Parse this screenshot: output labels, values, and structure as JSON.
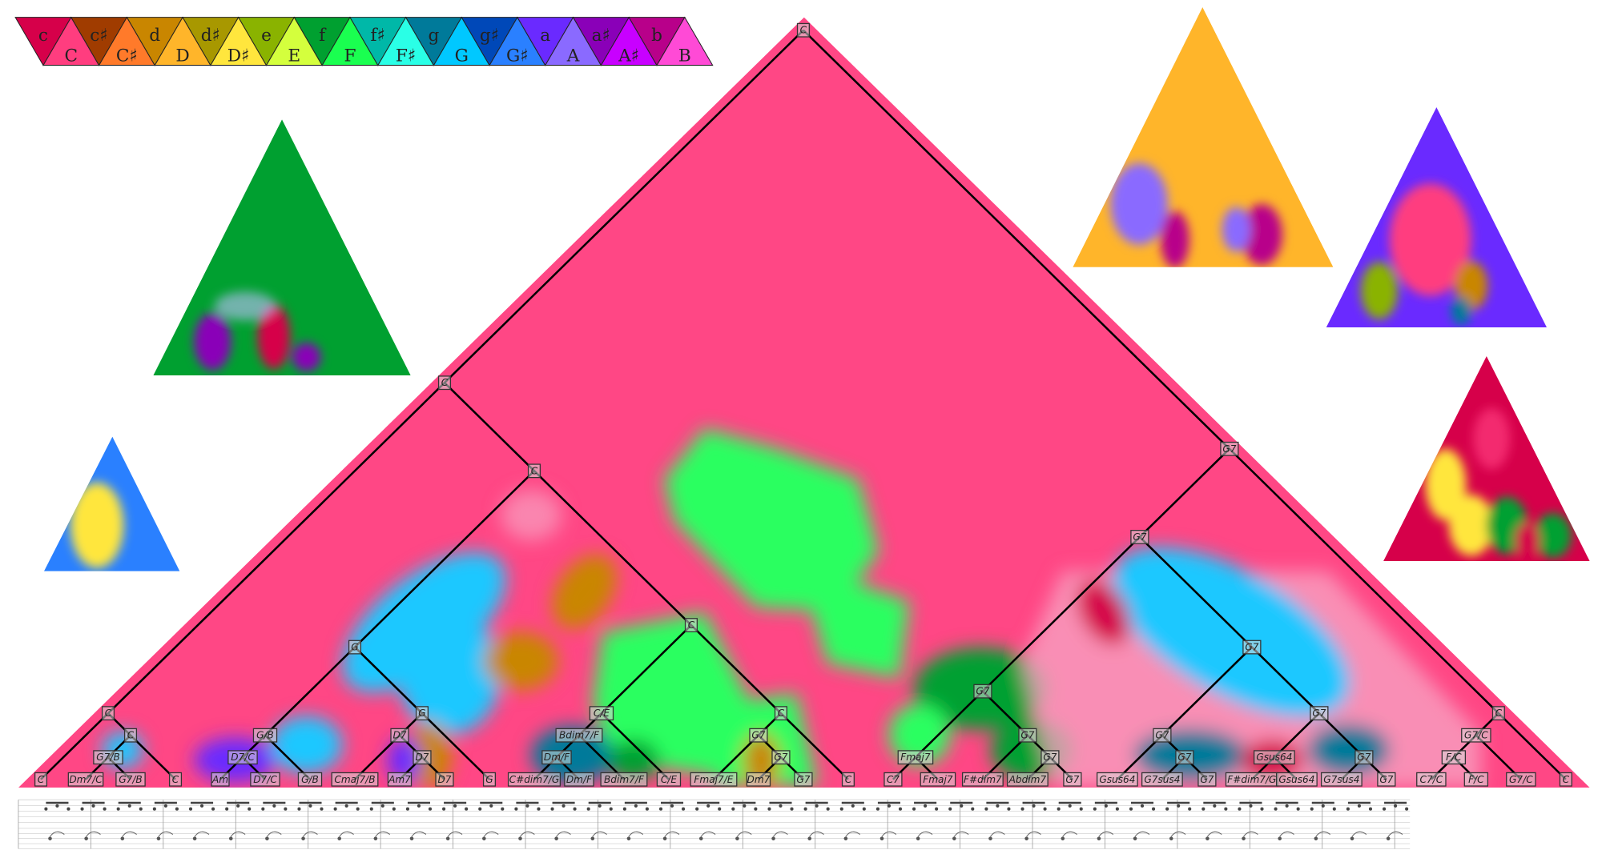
{
  "legend": [
    {
      "label": "c",
      "color": "#d6004a",
      "mode": "minor"
    },
    {
      "label": "C",
      "color": "#ff3d7f",
      "mode": "major"
    },
    {
      "label": "c♯",
      "color": "#a03c00",
      "mode": "minor"
    },
    {
      "label": "C♯",
      "color": "#ff7a2a",
      "mode": "major"
    },
    {
      "label": "d",
      "color": "#c98600",
      "mode": "minor"
    },
    {
      "label": "D",
      "color": "#ffb52a",
      "mode": "major"
    },
    {
      "label": "d♯",
      "color": "#a89800",
      "mode": "minor"
    },
    {
      "label": "D♯",
      "color": "#ffe63d",
      "mode": "major"
    },
    {
      "label": "e",
      "color": "#8ab300",
      "mode": "minor"
    },
    {
      "label": "E",
      "color": "#d4ff3d",
      "mode": "major"
    },
    {
      "label": "f",
      "color": "#00a030",
      "mode": "minor"
    },
    {
      "label": "F",
      "color": "#1aff50",
      "mode": "major"
    },
    {
      "label": "f♯",
      "color": "#00b8a8",
      "mode": "minor"
    },
    {
      "label": "F♯",
      "color": "#2affe6",
      "mode": "major"
    },
    {
      "label": "g",
      "color": "#007a9a",
      "mode": "minor"
    },
    {
      "label": "G",
      "color": "#00c8ff",
      "mode": "major"
    },
    {
      "label": "g♯",
      "color": "#0048b8",
      "mode": "minor"
    },
    {
      "label": "G♯",
      "color": "#2a80ff",
      "mode": "major"
    },
    {
      "label": "a",
      "color": "#6a2aff",
      "mode": "minor"
    },
    {
      "label": "A",
      "color": "#8a6aff",
      "mode": "major"
    },
    {
      "label": "a♯",
      "color": "#8a00b8",
      "mode": "minor"
    },
    {
      "label": "A♯",
      "color": "#c800ff",
      "mode": "major"
    },
    {
      "label": "b",
      "color": "#b8008a",
      "mode": "minor"
    },
    {
      "label": "B",
      "color": "#ff4ad6",
      "mode": "major"
    }
  ],
  "keyscape_base_color": "#ff4785",
  "tree": {
    "label": "C",
    "children": [
      {
        "label": "C",
        "children": [
          {
            "label": "C",
            "children": [
              {
                "label": "C"
              },
              {
                "label": "C",
                "children": [
                  {
                    "label": "G7/B",
                    "children": [
                      {
                        "label": "Dm7/C"
                      },
                      {
                        "label": "G7/B"
                      }
                    ]
                  },
                  {
                    "label": "C"
                  }
                ]
              }
            ]
          },
          {
            "label": "C",
            "children": [
              {
                "label": "G",
                "children": [
                  {
                    "label": "G/B",
                    "children": [
                      {
                        "label": "D7/C",
                        "children": [
                          {
                            "label": "Am"
                          },
                          {
                            "label": "D7/C"
                          }
                        ]
                      },
                      {
                        "label": "G/B"
                      }
                    ]
                  },
                  {
                    "label": "G",
                    "children": [
                      {
                        "label": "D7",
                        "children": [
                          {
                            "label": "Cmaj7/B"
                          },
                          {
                            "label": "D7",
                            "children": [
                              {
                                "label": "Am7"
                              },
                              {
                                "label": "D7"
                              }
                            ]
                          }
                        ]
                      },
                      {
                        "label": "G"
                      }
                    ]
                  }
                ]
              },
              {
                "label": "C",
                "children": [
                  {
                    "label": "C/E",
                    "children": [
                      {
                        "label": "Bdim7/F",
                        "children": [
                          {
                            "label": "Dm/F",
                            "children": [
                              {
                                "label": "C#dim7/G"
                              },
                              {
                                "label": "Dm/F"
                              }
                            ]
                          },
                          {
                            "label": "Bdim7/F"
                          }
                        ]
                      },
                      {
                        "label": "C/E"
                      }
                    ]
                  },
                  {
                    "label": "C",
                    "children": [
                      {
                        "label": "G7",
                        "children": [
                          {
                            "label": "Fmaj7/E"
                          },
                          {
                            "label": "G7",
                            "children": [
                              {
                                "label": "Dm7"
                              },
                              {
                                "label": "G7"
                              }
                            ]
                          }
                        ]
                      },
                      {
                        "label": "C"
                      }
                    ]
                  }
                ]
              }
            ]
          }
        ]
      },
      {
        "label": "G7",
        "children": [
          {
            "label": "G7",
            "children": [
              {
                "label": "G7",
                "children": [
                  {
                    "label": "Fmaj7",
                    "children": [
                      {
                        "label": "C7"
                      },
                      {
                        "label": "Fmaj7"
                      }
                    ]
                  },
                  {
                    "label": "G7",
                    "children": [
                      {
                        "label": "F#dim7"
                      },
                      {
                        "label": "G7",
                        "children": [
                          {
                            "label": "Abdim7"
                          },
                          {
                            "label": "G7"
                          }
                        ]
                      }
                    ]
                  }
                ]
              },
              {
                "label": "G7",
                "children": [
                  {
                    "label": "G7",
                    "children": [
                      {
                        "label": "Gsus64"
                      },
                      {
                        "label": "G7",
                        "children": [
                          {
                            "label": "G7sus4"
                          },
                          {
                            "label": "G7"
                          }
                        ]
                      }
                    ]
                  },
                  {
                    "label": "G7",
                    "children": [
                      {
                        "label": "Gsus64",
                        "children": [
                          {
                            "label": "F#dim7/G"
                          },
                          {
                            "label": "Gsus64"
                          }
                        ]
                      },
                      {
                        "label": "G7",
                        "children": [
                          {
                            "label": "G7sus4"
                          },
                          {
                            "label": "G7"
                          }
                        ]
                      }
                    ]
                  }
                ]
              }
            ]
          },
          {
            "label": "C",
            "children": [
              {
                "label": "G7/C",
                "children": [
                  {
                    "label": "F/C",
                    "children": [
                      {
                        "label": "C7/C"
                      },
                      {
                        "label": "F/C"
                      }
                    ]
                  },
                  {
                    "label": "G7/C"
                  }
                ]
              },
              {
                "label": "C"
              }
            ]
          }
        ]
      }
    ]
  },
  "small_keyscapes": [
    {
      "base_color": "#00a030",
      "accent_colors": [
        "#8a00b8",
        "#d6004a",
        "#c0c0ff"
      ]
    },
    {
      "base_color": "#2a80ff",
      "accent_colors": [
        "#ffe63d"
      ]
    },
    {
      "base_color": "#ffb52a",
      "accent_colors": [
        "#8a6aff",
        "#b8008a"
      ]
    },
    {
      "base_color": "#6a2aff",
      "accent_colors": [
        "#ff3d7f",
        "#8ab300",
        "#c98600",
        "#007a9a"
      ]
    },
    {
      "base_color": "#d6004a",
      "accent_colors": [
        "#ffe63d",
        "#00a030",
        "#ff3d7f"
      ]
    }
  ]
}
